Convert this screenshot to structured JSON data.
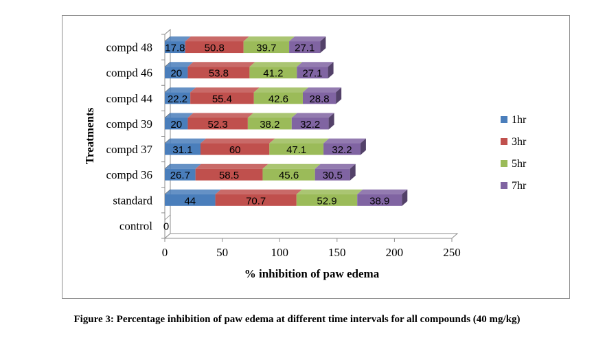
{
  "chart_data": {
    "type": "bar",
    "orientation": "horizontal",
    "stacked": true,
    "three_d": true,
    "categories": [
      "control",
      "standard",
      "compd 36",
      "compd 37",
      "compd 39",
      "compd 44",
      "compd 46",
      "compd 48"
    ],
    "series": [
      {
        "name": "1hr",
        "color": "#4a7ebb",
        "values": [
          0,
          44,
          26.7,
          31.1,
          20,
          22.2,
          20,
          17.8
        ]
      },
      {
        "name": "3hr",
        "color": "#c0504d",
        "values": [
          0,
          70.7,
          58.5,
          60,
          52.3,
          55.4,
          53.8,
          50.8
        ]
      },
      {
        "name": "5hr",
        "color": "#9bbb59",
        "values": [
          0,
          52.9,
          45.6,
          47.1,
          38.2,
          42.6,
          41.2,
          39.7
        ]
      },
      {
        "name": "7hr",
        "color": "#8064a2",
        "values": [
          0,
          38.9,
          30.5,
          32.2,
          32.2,
          28.8,
          27.1,
          27.1
        ]
      }
    ],
    "xlabel": "% inhibition of paw edema",
    "ylabel": "Treatments",
    "xlim": [
      0,
      250
    ],
    "xticks": [
      0,
      50,
      100,
      150,
      200,
      250
    ],
    "data_labels": true,
    "legend_position": "right",
    "grid": false
  },
  "caption": "Figure 3: Percentage inhibition of paw edema at different time intervals for all compounds (40 mg/kg)"
}
